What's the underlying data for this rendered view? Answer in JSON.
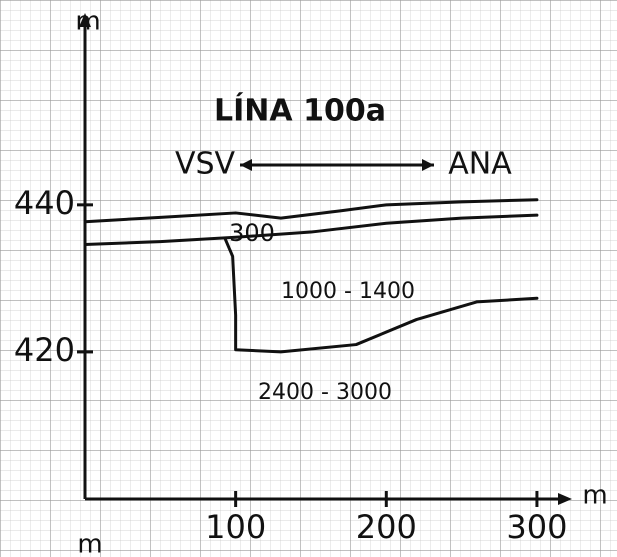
{
  "chart_data": {
    "type": "line",
    "title": "LÍNA 100a",
    "direction": {
      "left": "VSV",
      "right": "ANA"
    },
    "y_label": "m",
    "x_label": "m",
    "x_label_bottom": "m",
    "layer_labels": [
      "300",
      "1000 - 1400",
      "2400 - 3000"
    ],
    "xlim": [
      0,
      310
    ],
    "ylim": [
      400,
      465
    ],
    "xticks": [
      100,
      200,
      300
    ],
    "yticks": [
      420,
      440
    ],
    "color": "#111111",
    "series": [
      {
        "x": [
          0,
          50,
          100,
          130,
          170,
          200,
          250,
          300
        ],
        "values": [
          437.7,
          438.3,
          438.9,
          438.2,
          439.2,
          440,
          440.4,
          440.7
        ]
      },
      {
        "x": [
          0,
          50,
          100,
          150,
          200,
          250,
          300
        ],
        "values": [
          434.6,
          435,
          435.6,
          436.3,
          437.5,
          438.2,
          438.6
        ]
      },
      {
        "x": [
          93,
          98,
          100,
          100,
          130,
          180,
          220,
          260,
          300
        ],
        "values": [
          435.4,
          433,
          425,
          420.3,
          420,
          421,
          424.4,
          426.8,
          427.3
        ]
      }
    ]
  }
}
